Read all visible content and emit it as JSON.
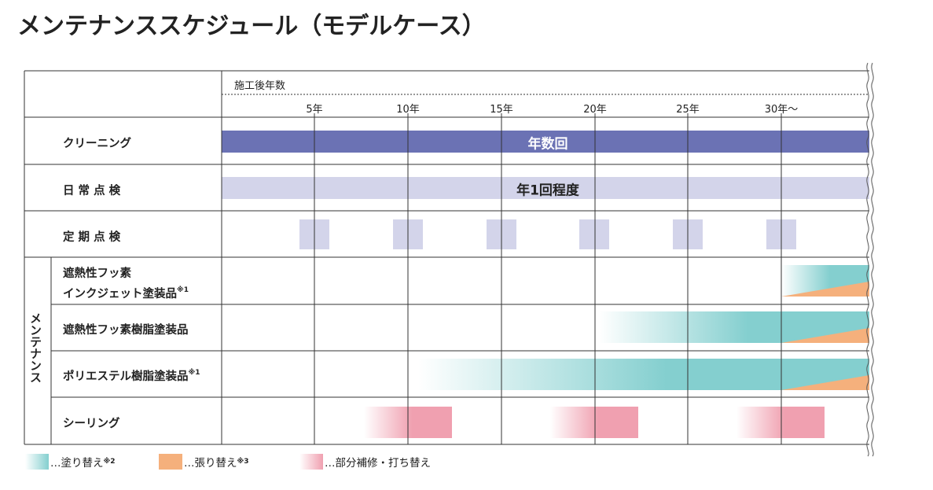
{
  "title": "メンテナンススケジュール（モデルケース）",
  "header": {
    "axis_label": "施工後年数"
  },
  "ticks": [
    "5年",
    "10年",
    "15年",
    "20年",
    "25年",
    "30年〜"
  ],
  "rows": {
    "cleaning": {
      "label": "クリーニング",
      "bar_text": "年数回"
    },
    "daily": {
      "label": "日 常 点 検",
      "bar_text": "年1回程度"
    },
    "periodic": {
      "label": "定 期 点 検"
    },
    "maint_group_label": "メンテナンス",
    "inkjet": {
      "label_line1": "遮熱性フッ素",
      "label_line2": "インクジェット塗装品",
      "note": "※1"
    },
    "fluoro": {
      "label": "遮熱性フッ素樹脂塗装品"
    },
    "polyester": {
      "label": "ポリエステル樹脂塗装品",
      "note": "※1"
    },
    "sealing": {
      "label": "シーリング"
    }
  },
  "legend": [
    {
      "text": "…塗り替え",
      "note": "※2",
      "color": "#84cfcf"
    },
    {
      "text": "…張り替え",
      "note": "※3",
      "color": "#f5b07c"
    },
    {
      "text": "…部分補修・打ち替え",
      "note": "",
      "color": "#f0a0b0"
    }
  ],
  "colors": {
    "cleaning_bar": "#6b72b4",
    "daily_bar": "#d3d4ea",
    "periodic_box": "#d3d4ea",
    "teal": "#84cfcf",
    "orange": "#f5b07c",
    "pink": "#f0a0b0",
    "grid": "#333333"
  }
}
